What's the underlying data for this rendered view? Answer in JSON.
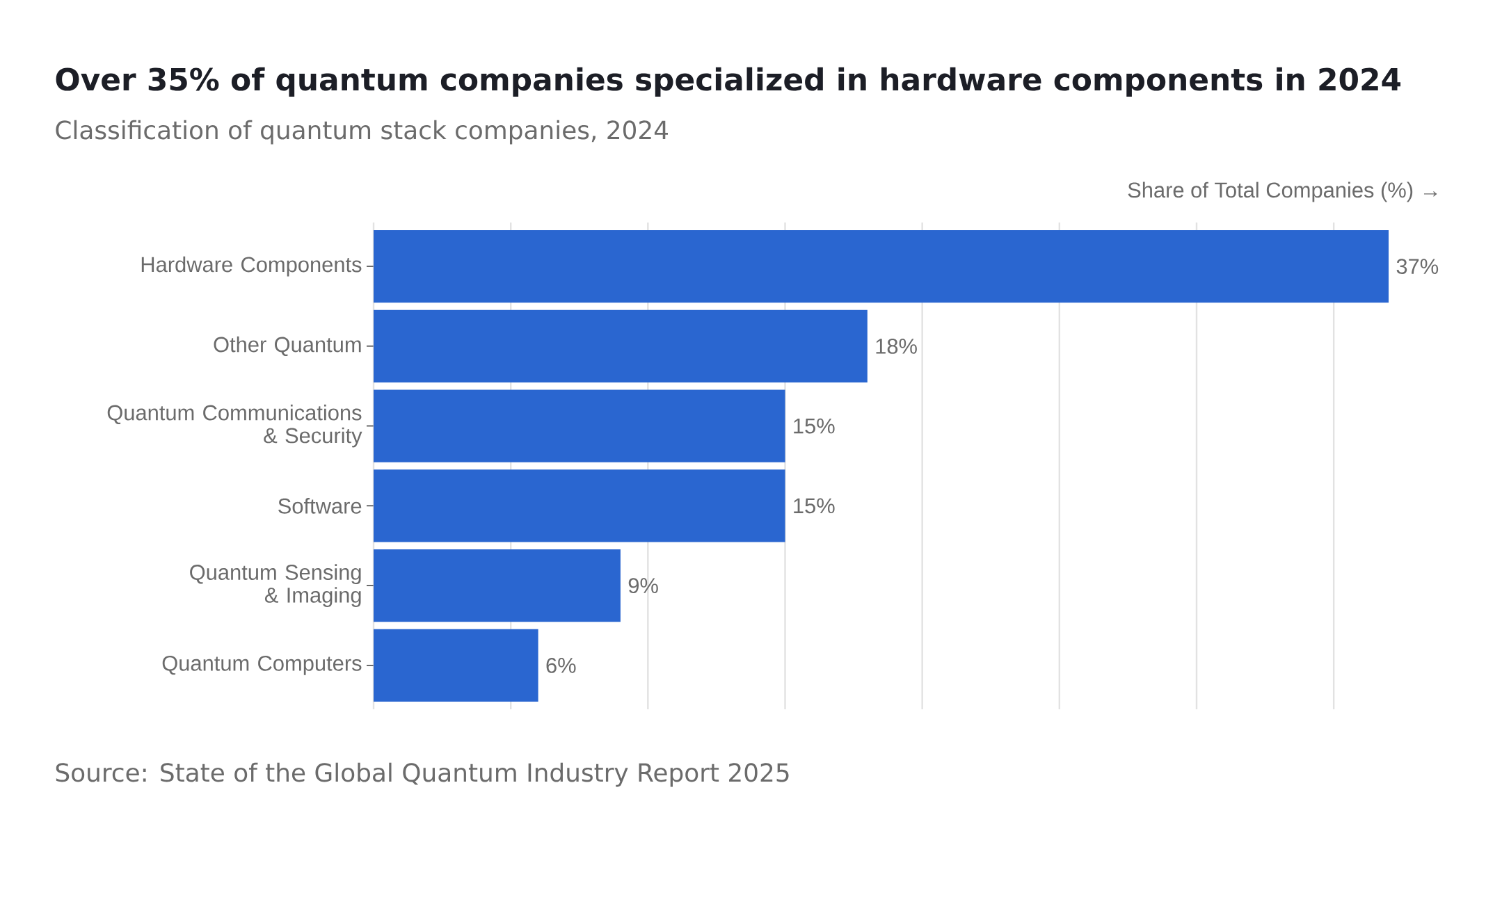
{
  "chart_data": {
    "type": "bar",
    "orientation": "horizontal",
    "title": "Over 35% of quantum companies specialized in hardware components in 2024",
    "subtitle": "Classification of quantum stack companies, 2024",
    "xlabel": "Share of Total Companies (%) →",
    "categories": [
      "Hardware Components",
      "Other Quantum",
      "Quantum Communications & Security",
      "Software",
      "Quantum Sensing & Imaging",
      "Quantum Computers"
    ],
    "values": [
      37,
      18,
      15,
      15,
      9,
      6
    ],
    "value_labels": [
      "37%",
      "18%",
      "15%",
      "15%",
      "9%",
      "6%"
    ],
    "color": "#2a66d0",
    "xlim": [
      0,
      37
    ],
    "xticks": [
      {
        "value": 0,
        "label": null
      },
      {
        "value": 5,
        "label": null
      },
      {
        "value": 10,
        "label": null
      },
      {
        "value": 15,
        "label": null
      },
      {
        "value": 20,
        "label": null
      },
      {
        "value": 25,
        "label": null
      },
      {
        "value": 30,
        "label": null
      },
      {
        "value": 35,
        "label": null
      }
    ],
    "grid": "x",
    "tick_labels": "y",
    "annotations": [
      "Source: State of the Global Quantum Industry Report 2025"
    ]
  }
}
